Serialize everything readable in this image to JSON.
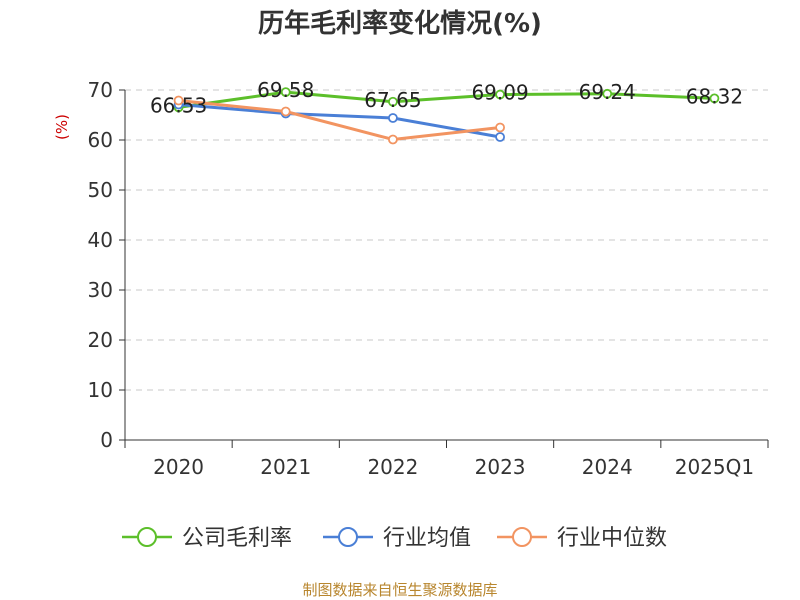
{
  "chart_data": {
    "type": "line",
    "title": "历年毛利率变化情况(%)",
    "ylabel": "(%)",
    "xlabel": "",
    "categories": [
      "2020",
      "2021",
      "2022",
      "2023",
      "2024",
      "2025Q1"
    ],
    "ylim": [
      0,
      70
    ],
    "yticks": [
      0,
      10,
      20,
      30,
      40,
      50,
      60,
      70
    ],
    "grid": true,
    "legend_position": "bottom",
    "series": [
      {
        "name": "公司毛利率",
        "color": "#5cbf2a",
        "values": [
          66.53,
          69.58,
          67.65,
          69.09,
          69.24,
          68.32
        ],
        "labels": [
          "66.53",
          "69.58",
          "67.65",
          "69.09",
          "69.24",
          "68.32"
        ]
      },
      {
        "name": "行业均值",
        "color": "#4a7fd6",
        "values": [
          67.1,
          65.3,
          64.4,
          60.6,
          null,
          null
        ]
      },
      {
        "name": "行业中位数",
        "color": "#f29461",
        "values": [
          67.9,
          65.7,
          60.1,
          62.5,
          null,
          null
        ]
      }
    ]
  },
  "footer": {
    "source": "制图数据来自恒生聚源数据库"
  }
}
